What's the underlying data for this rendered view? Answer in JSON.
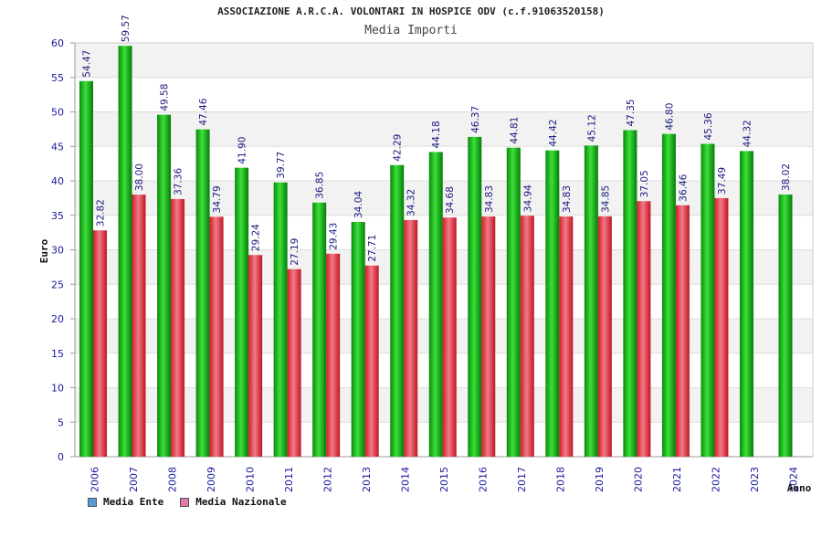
{
  "chart_data": {
    "type": "bar",
    "title": "ASSOCIAZIONE A.R.C.A. VOLONTARI IN HOSPICE ODV (c.f.91063520158)",
    "subtitle": "Media Importi",
    "xlabel": "Anno",
    "ylabel": "Euro",
    "ylim": [
      0,
      60
    ],
    "yticks": [
      "0",
      "5",
      "10",
      "15",
      "20",
      "25",
      "30",
      "35",
      "40",
      "45",
      "50",
      "55",
      "60"
    ],
    "grid": "horizontal bands",
    "legend_position": "bottom-left",
    "categories": [
      "2006",
      "2007",
      "2008",
      "2009",
      "2010",
      "2011",
      "2012",
      "2013",
      "2014",
      "2015",
      "2016",
      "2017",
      "2018",
      "2019",
      "2020",
      "2021",
      "2022",
      "2023",
      "2024"
    ],
    "series": [
      {
        "name": "Media Ente",
        "color": "#1fbf1f",
        "legend_color": "#5b9bd5",
        "values": [
          54.47,
          59.57,
          49.58,
          47.46,
          41.9,
          39.77,
          36.85,
          34.04,
          42.29,
          44.18,
          46.37,
          44.81,
          44.42,
          45.12,
          47.35,
          46.8,
          45.36,
          44.32,
          38.02
        ],
        "labels": [
          "54.47",
          "59.57",
          "49.58",
          "47.46",
          "41.90",
          "39.77",
          "36.85",
          "34.04",
          "42.29",
          "44.18",
          "46.37",
          "44.81",
          "44.42",
          "45.12",
          "47.35",
          "46.80",
          "45.36",
          "44.32",
          "38.02"
        ]
      },
      {
        "name": "Media Nazionale",
        "color": "#e8303c",
        "legend_color": "#e377a8",
        "values": [
          32.82,
          38.0,
          37.36,
          34.79,
          29.24,
          27.19,
          29.43,
          27.71,
          34.32,
          34.68,
          34.83,
          34.94,
          34.83,
          34.85,
          37.05,
          36.46,
          37.49,
          null,
          null
        ],
        "labels": [
          "32.82",
          "38.00",
          "37.36",
          "34.79",
          "29.24",
          "27.19",
          "29.43",
          "27.71",
          "34.32",
          "34.68",
          "34.83",
          "34.94",
          "34.83",
          "34.85",
          "37.05",
          "36.46",
          "37.49",
          "",
          ""
        ]
      }
    ]
  }
}
